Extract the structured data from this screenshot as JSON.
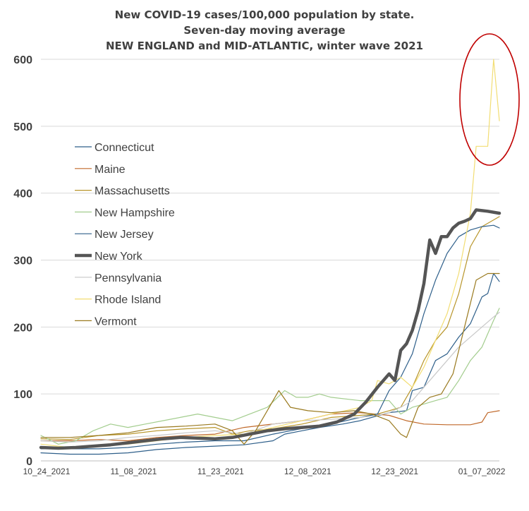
{
  "chart_data": {
    "type": "line",
    "title": [
      "New COVID-19 cases/100,000 population by state.",
      "Seven-day moving average",
      "NEW ENGLAND and MID-ATLANTIC, winter wave 2021"
    ],
    "xlabel": "",
    "ylabel": "",
    "ylim": [
      0,
      600
    ],
    "yticks": [
      0,
      100,
      200,
      300,
      400,
      500,
      600
    ],
    "xticks": [
      "10_24_2021",
      "11_08_2021",
      "11_23_2021",
      "12_08_2021",
      "12_23_2021",
      "01_07_2022"
    ],
    "x_range_days": [
      0,
      79
    ],
    "grid": "horizontal",
    "legend_position": "left",
    "annotation": "red-ellipse-around-rhode-island-peak",
    "series": [
      {
        "name": "Connecticut",
        "color": "#2e5f8a",
        "width": 1.2,
        "points": [
          [
            0,
            12
          ],
          [
            5,
            10
          ],
          [
            10,
            10
          ],
          [
            15,
            12
          ],
          [
            20,
            17
          ],
          [
            25,
            20
          ],
          [
            30,
            22
          ],
          [
            35,
            24
          ],
          [
            40,
            30
          ],
          [
            42,
            40
          ],
          [
            45,
            45
          ],
          [
            48,
            50
          ],
          [
            52,
            55
          ],
          [
            55,
            60
          ],
          [
            57,
            65
          ],
          [
            60,
            72
          ],
          [
            63,
            75
          ],
          [
            64,
            105
          ],
          [
            66,
            110
          ],
          [
            68,
            150
          ],
          [
            70,
            160
          ],
          [
            72,
            185
          ],
          [
            74,
            205
          ],
          [
            76,
            245
          ],
          [
            77,
            250
          ],
          [
            78,
            280
          ],
          [
            79,
            268
          ]
        ]
      },
      {
        "name": "Maine",
        "color": "#c0692a",
        "width": 1.2,
        "points": [
          [
            0,
            30
          ],
          [
            5,
            30
          ],
          [
            10,
            32
          ],
          [
            15,
            30
          ],
          [
            20,
            35
          ],
          [
            25,
            38
          ],
          [
            30,
            40
          ],
          [
            35,
            50
          ],
          [
            40,
            55
          ],
          [
            45,
            60
          ],
          [
            50,
            70
          ],
          [
            55,
            72
          ],
          [
            60,
            68
          ],
          [
            63,
            60
          ],
          [
            66,
            55
          ],
          [
            70,
            54
          ],
          [
            74,
            54
          ],
          [
            76,
            58
          ],
          [
            77,
            72
          ],
          [
            79,
            75
          ]
        ]
      },
      {
        "name": "Massachusetts",
        "color": "#b8952a",
        "width": 1.2,
        "points": [
          [
            0,
            33
          ],
          [
            5,
            32
          ],
          [
            10,
            38
          ],
          [
            15,
            40
          ],
          [
            20,
            45
          ],
          [
            25,
            48
          ],
          [
            30,
            50
          ],
          [
            33,
            40
          ],
          [
            36,
            45
          ],
          [
            40,
            48
          ],
          [
            45,
            55
          ],
          [
            50,
            65
          ],
          [
            55,
            68
          ],
          [
            58,
            70
          ],
          [
            60,
            75
          ],
          [
            62,
            80
          ],
          [
            64,
            110
          ],
          [
            66,
            150
          ],
          [
            68,
            180
          ],
          [
            70,
            200
          ],
          [
            72,
            250
          ],
          [
            74,
            320
          ],
          [
            76,
            350
          ],
          [
            78,
            360
          ],
          [
            79,
            365
          ]
        ]
      },
      {
        "name": "New Hampshire",
        "color": "#a3cd8e",
        "width": 1.2,
        "points": [
          [
            0,
            38
          ],
          [
            3,
            25
          ],
          [
            6,
            30
          ],
          [
            9,
            45
          ],
          [
            12,
            55
          ],
          [
            15,
            50
          ],
          [
            18,
            55
          ],
          [
            21,
            60
          ],
          [
            24,
            65
          ],
          [
            27,
            70
          ],
          [
            30,
            65
          ],
          [
            33,
            60
          ],
          [
            36,
            70
          ],
          [
            39,
            80
          ],
          [
            42,
            105
          ],
          [
            44,
            95
          ],
          [
            46,
            95
          ],
          [
            48,
            100
          ],
          [
            50,
            95
          ],
          [
            55,
            90
          ],
          [
            60,
            90
          ],
          [
            62,
            70
          ],
          [
            64,
            80
          ],
          [
            66,
            85
          ],
          [
            68,
            90
          ],
          [
            70,
            95
          ],
          [
            72,
            120
          ],
          [
            74,
            150
          ],
          [
            76,
            170
          ],
          [
            78,
            210
          ],
          [
            79,
            228
          ]
        ]
      },
      {
        "name": "New Jersey",
        "color": "#2e5f8a",
        "width": 1.2,
        "points": [
          [
            0,
            18
          ],
          [
            5,
            18
          ],
          [
            10,
            18
          ],
          [
            15,
            20
          ],
          [
            20,
            25
          ],
          [
            25,
            28
          ],
          [
            30,
            30
          ],
          [
            35,
            30
          ],
          [
            40,
            40
          ],
          [
            43,
            45
          ],
          [
            46,
            50
          ],
          [
            50,
            55
          ],
          [
            55,
            65
          ],
          [
            58,
            70
          ],
          [
            60,
            105
          ],
          [
            62,
            125
          ],
          [
            64,
            160
          ],
          [
            66,
            220
          ],
          [
            68,
            270
          ],
          [
            70,
            310
          ],
          [
            72,
            335
          ],
          [
            74,
            345
          ],
          [
            76,
            350
          ],
          [
            78,
            352
          ],
          [
            79,
            348
          ]
        ]
      },
      {
        "name": "New York",
        "color": "#555555",
        "width": 4.5,
        "points": [
          [
            0,
            20
          ],
          [
            3,
            19
          ],
          [
            6,
            20
          ],
          [
            9,
            22
          ],
          [
            12,
            24
          ],
          [
            15,
            27
          ],
          [
            18,
            30
          ],
          [
            21,
            33
          ],
          [
            24,
            35
          ],
          [
            27,
            34
          ],
          [
            30,
            33
          ],
          [
            33,
            35
          ],
          [
            36,
            40
          ],
          [
            39,
            45
          ],
          [
            42,
            48
          ],
          [
            45,
            50
          ],
          [
            48,
            52
          ],
          [
            51,
            58
          ],
          [
            54,
            70
          ],
          [
            56,
            88
          ],
          [
            58,
            110
          ],
          [
            60,
            130
          ],
          [
            61,
            120
          ],
          [
            62,
            165
          ],
          [
            63,
            175
          ],
          [
            64,
            195
          ],
          [
            65,
            225
          ],
          [
            66,
            265
          ],
          [
            67,
            330
          ],
          [
            68,
            310
          ],
          [
            69,
            335
          ],
          [
            70,
            335
          ],
          [
            71,
            348
          ],
          [
            72,
            355
          ],
          [
            73,
            358
          ],
          [
            74,
            362
          ],
          [
            75,
            375
          ],
          [
            77,
            373
          ],
          [
            79,
            370
          ]
        ]
      },
      {
        "name": "Pennsylvania",
        "color": "#c8c8c8",
        "width": 1.2,
        "points": [
          [
            0,
            30
          ],
          [
            5,
            28
          ],
          [
            10,
            30
          ],
          [
            15,
            35
          ],
          [
            20,
            38
          ],
          [
            25,
            42
          ],
          [
            30,
            45
          ],
          [
            35,
            40
          ],
          [
            40,
            55
          ],
          [
            45,
            60
          ],
          [
            50,
            62
          ],
          [
            55,
            65
          ],
          [
            58,
            68
          ],
          [
            60,
            72
          ],
          [
            62,
            80
          ],
          [
            64,
            90
          ],
          [
            66,
            110
          ],
          [
            68,
            130
          ],
          [
            70,
            150
          ],
          [
            72,
            170
          ],
          [
            74,
            185
          ],
          [
            76,
            200
          ],
          [
            78,
            215
          ],
          [
            79,
            222
          ]
        ]
      },
      {
        "name": "Rhode Island",
        "color": "#f2dd73",
        "width": 1.2,
        "points": [
          [
            0,
            25
          ],
          [
            5,
            20
          ],
          [
            10,
            22
          ],
          [
            15,
            25
          ],
          [
            20,
            30
          ],
          [
            25,
            35
          ],
          [
            30,
            38
          ],
          [
            35,
            40
          ],
          [
            40,
            50
          ],
          [
            45,
            60
          ],
          [
            50,
            70
          ],
          [
            55,
            80
          ],
          [
            57,
            90
          ],
          [
            58,
            120
          ],
          [
            60,
            115
          ],
          [
            62,
            125
          ],
          [
            64,
            110
          ],
          [
            66,
            140
          ],
          [
            68,
            180
          ],
          [
            70,
            220
          ],
          [
            72,
            280
          ],
          [
            74,
            370
          ],
          [
            75,
            470
          ],
          [
            77,
            470
          ],
          [
            78,
            600
          ],
          [
            79,
            508
          ]
        ]
      },
      {
        "name": "Vermont",
        "color": "#9a7a1f",
        "width": 1.2,
        "points": [
          [
            0,
            35
          ],
          [
            5,
            35
          ],
          [
            10,
            38
          ],
          [
            15,
            42
          ],
          [
            20,
            50
          ],
          [
            25,
            52
          ],
          [
            30,
            55
          ],
          [
            33,
            45
          ],
          [
            35,
            25
          ],
          [
            37,
            45
          ],
          [
            39,
            75
          ],
          [
            41,
            105
          ],
          [
            43,
            80
          ],
          [
            46,
            75
          ],
          [
            50,
            72
          ],
          [
            54,
            75
          ],
          [
            57,
            70
          ],
          [
            60,
            60
          ],
          [
            62,
            40
          ],
          [
            63,
            35
          ],
          [
            65,
            80
          ],
          [
            67,
            95
          ],
          [
            69,
            100
          ],
          [
            71,
            130
          ],
          [
            73,
            200
          ],
          [
            75,
            270
          ],
          [
            77,
            280
          ],
          [
            79,
            280
          ]
        ]
      }
    ]
  }
}
